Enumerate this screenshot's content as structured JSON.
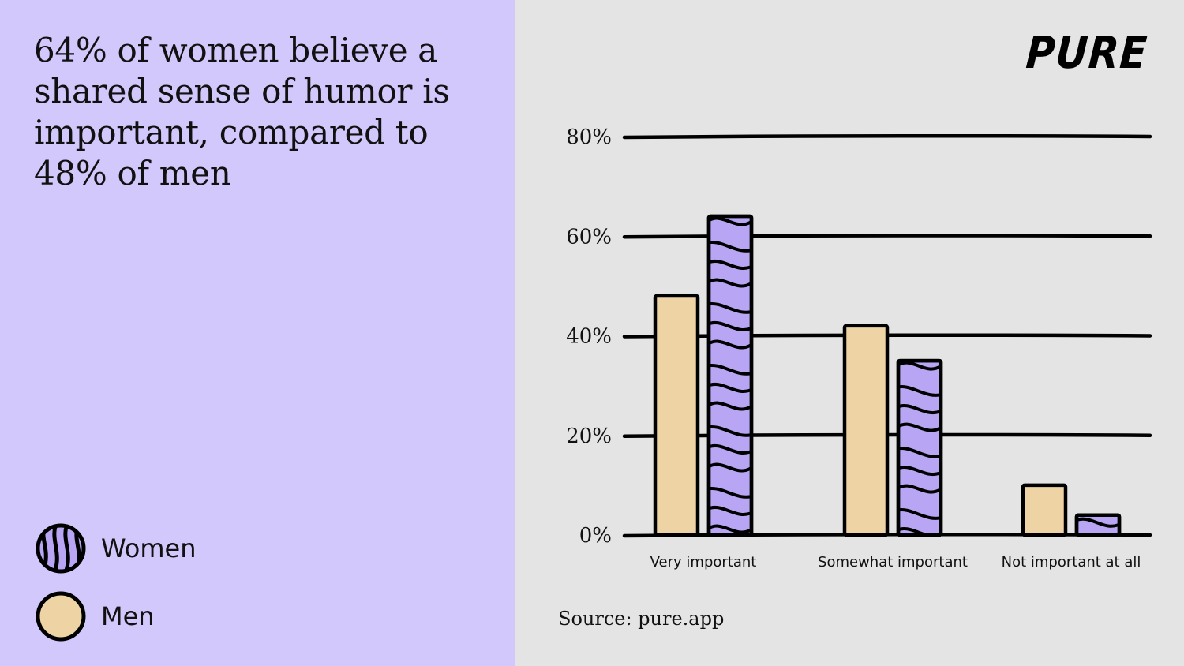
{
  "headline": "64% of women believe a shared sense of humor is important, compared to 48% of men",
  "brand": "PURE",
  "source": "Source: pure.app",
  "legend": [
    {
      "label": "Women",
      "pattern": "striped",
      "color": "#b8a6f5"
    },
    {
      "label": "Men",
      "pattern": "solid",
      "color": "#eed3a5"
    }
  ],
  "colors": {
    "left_panel": "#d2c8fb",
    "right_panel": "#e4e4e4",
    "women": "#b8a6f5",
    "men": "#eed3a5",
    "outline": "#000000"
  },
  "chart_data": {
    "type": "bar",
    "categories": [
      "Very important",
      "Somewhat important",
      "Not important at all"
    ],
    "series": [
      {
        "name": "Men",
        "values": [
          48,
          42,
          10
        ]
      },
      {
        "name": "Women",
        "values": [
          64,
          35,
          4
        ]
      }
    ],
    "yticks": [
      "0%",
      "20%",
      "40%",
      "60%",
      "80%"
    ],
    "ylim": [
      0,
      80
    ],
    "grid": true,
    "legend_position": "bottom-left"
  }
}
